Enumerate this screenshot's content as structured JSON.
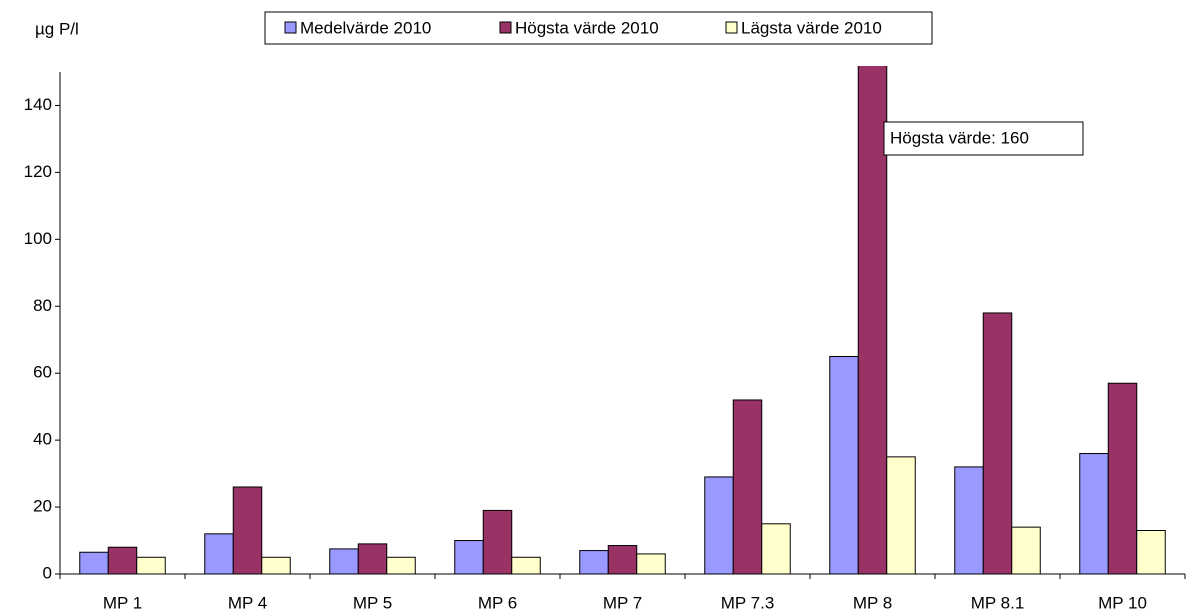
{
  "chart_data": {
    "type": "bar",
    "y_label": "µg P/l",
    "categories": [
      "MP 1",
      "MP 4",
      "MP 5",
      "MP 6",
      "MP 7",
      "MP 7.3",
      "MP 8",
      "MP 8.1",
      "MP 10"
    ],
    "series": [
      {
        "name": "Medelvärde 2010",
        "color": "#9999ff",
        "values": [
          6.5,
          12,
          7.5,
          10,
          7,
          29,
          65,
          32,
          36
        ]
      },
      {
        "name": "Högsta värde 2010",
        "color": "#993366",
        "values": [
          8,
          26,
          9,
          19,
          8.5,
          52,
          160,
          78,
          57
        ]
      },
      {
        "name": "Lägsta värde 2010",
        "color": "#ffffcc",
        "values": [
          5,
          5,
          5,
          5,
          6,
          15,
          35,
          14,
          13
        ]
      }
    ],
    "annotation": "Högsta värde:  160",
    "ylim": [
      0,
      150
    ],
    "yticks": [
      0,
      20,
      40,
      60,
      80,
      100,
      120,
      140
    ],
    "grid": false,
    "legend": "top"
  }
}
